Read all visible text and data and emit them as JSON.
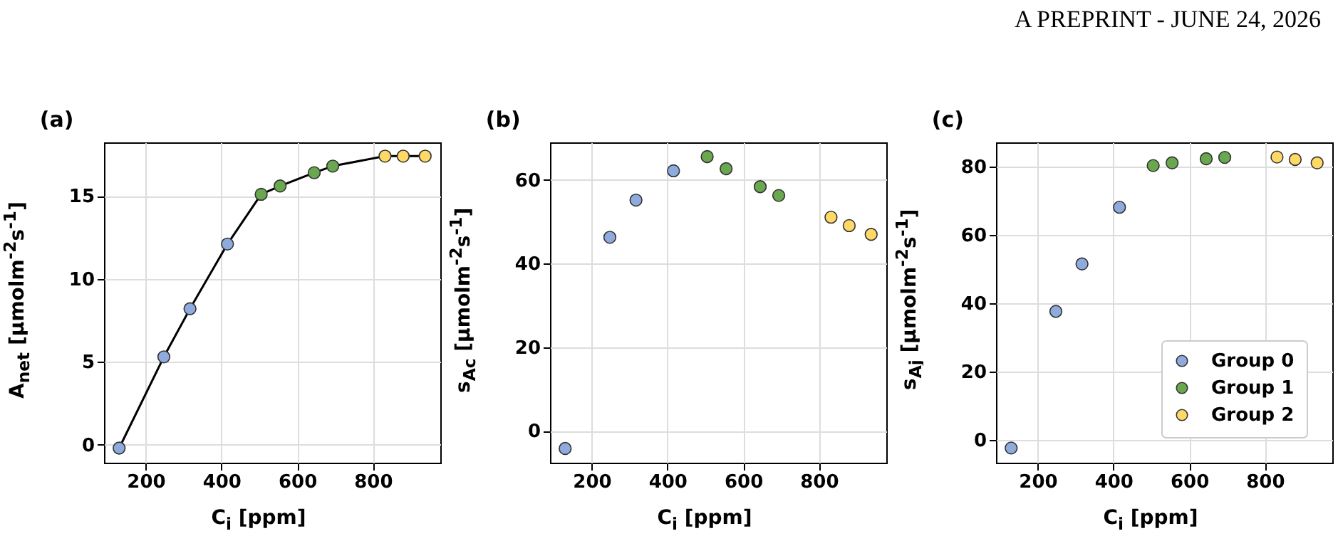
{
  "chart_data": [
    {
      "type": "scatter",
      "title": "(a)",
      "xlabel": "C$_{i}$ [ppm]",
      "ylabel": "A$_{net}$ [µmolm$^{-2}$s$^{-1}$]",
      "annotations": [
        "A PREPRINT - JUNE 24, 2026"
      ],
      "xlim": [
        90,
        978
      ],
      "xticks": [
        200,
        400,
        600,
        800
      ],
      "ylim": [
        -1.08,
        18.23
      ],
      "yticks": [
        0,
        5,
        10,
        15
      ],
      "grid": true,
      "series": [
        {
          "type": "line",
          "color": "#000000",
          "x": [
            130,
            248,
            317,
            416,
            505,
            555,
            645,
            694,
            832,
            880,
            938
          ],
          "values": [
            -0.2,
            5.3,
            8.2,
            12.1,
            15.1,
            15.6,
            16.4,
            16.8,
            17.4,
            17.4,
            17.4
          ]
        },
        {
          "marker": "circle",
          "color": "#8faadc",
          "x": [
            130,
            248,
            317,
            416
          ],
          "values": [
            -0.2,
            5.3,
            8.2,
            12.1
          ]
        },
        {
          "marker": "circle",
          "color": "#6aa84f",
          "x": [
            505,
            555,
            645,
            694
          ],
          "values": [
            15.1,
            15.6,
            16.4,
            16.8
          ]
        },
        {
          "marker": "circle",
          "color": "#ffd966",
          "x": [
            832,
            880,
            938
          ],
          "values": [
            17.4,
            17.4,
            17.4
          ]
        }
      ]
    },
    {
      "type": "scatter",
      "title": "(b)",
      "xlabel": "C$_{i}$ [ppm]",
      "ylabel": "s$_{Ac}$ [µmolm$^{-2}$s$^{-1}$]",
      "xlim": [
        90,
        978
      ],
      "xticks": [
        200,
        400,
        600,
        800
      ],
      "ylim": [
        -7.6,
        69
      ],
      "yticks": [
        0,
        20,
        40,
        60
      ],
      "grid": true,
      "marker": "circle",
      "series": [
        {
          "color": "#8faadc",
          "x": [
            130,
            248,
            317,
            416
          ],
          "values": [
            -4.2,
            46.3,
            55.2,
            62.2
          ]
        },
        {
          "color": "#6aa84f",
          "x": [
            505,
            555,
            645,
            694
          ],
          "values": [
            65.6,
            62.7,
            58.4,
            56.3
          ]
        },
        {
          "color": "#ffd966",
          "x": [
            832,
            880,
            938
          ],
          "values": [
            51.1,
            49.1,
            47.0
          ]
        }
      ]
    },
    {
      "type": "scatter",
      "title": "(c)",
      "xlabel": "C$_{i}$ [ppm]",
      "ylabel": "s$_{Aj}$ [µmolm$^{-2}$s$^{-1}$]",
      "xlim": [
        90,
        978
      ],
      "xticks": [
        200,
        400,
        600,
        800
      ],
      "ylim": [
        -6.7,
        87.1
      ],
      "yticks": [
        0,
        20,
        40,
        60,
        80
      ],
      "grid": true,
      "marker": "circle",
      "legend": "bottom right",
      "series": [
        {
          "name": "Group 0",
          "color": "#8faadc",
          "x": [
            130,
            248,
            317,
            416
          ],
          "values": [
            -2.4,
            37.6,
            51.5,
            68.1
          ]
        },
        {
          "name": "Group 1",
          "color": "#6aa84f",
          "x": [
            505,
            555,
            645,
            694
          ],
          "values": [
            80.3,
            81.1,
            82.3,
            82.7
          ]
        },
        {
          "name": "Group 2",
          "color": "#ffd966",
          "x": [
            832,
            880,
            938
          ],
          "values": [
            82.8,
            82.1,
            81.1
          ]
        }
      ]
    }
  ]
}
